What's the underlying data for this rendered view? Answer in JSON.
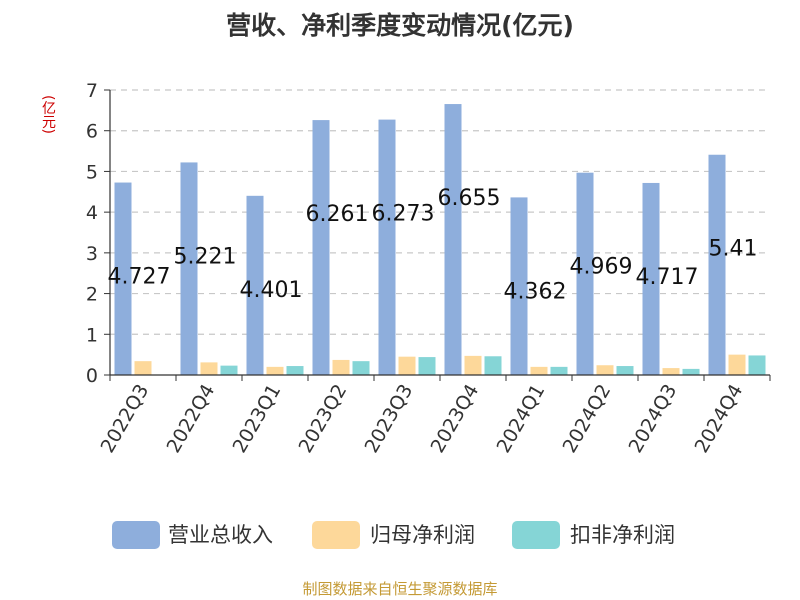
{
  "chart_data": {
    "type": "bar",
    "title": "营收、净利季度变动情况(亿元)",
    "unit_label": "(亿元)",
    "source": "制图数据来自恒生聚源数据库",
    "categories": [
      "2022Q3",
      "2022Q4",
      "2023Q1",
      "2023Q2",
      "2023Q3",
      "2023Q4",
      "2024Q1",
      "2024Q2",
      "2024Q3",
      "2024Q4"
    ],
    "ylim": [
      0,
      7
    ],
    "yticks": [
      "0",
      "1",
      "2",
      "3",
      "4",
      "5",
      "6",
      "7"
    ],
    "grid": true,
    "legend_position": "bottom",
    "series": [
      {
        "name": "营业总收入",
        "color": "#8eaedc",
        "values": [
          4.727,
          5.221,
          4.401,
          6.261,
          6.273,
          6.655,
          4.362,
          4.969,
          4.717,
          5.41
        ],
        "labels": [
          "4.727",
          "5.221",
          "4.401",
          "6.261",
          "6.273",
          "6.655",
          "4.362",
          "4.969",
          "4.717",
          "5.41"
        ]
      },
      {
        "name": "归母净利润",
        "color": "#fdd89a",
        "values": [
          0.34,
          0.31,
          0.2,
          0.37,
          0.45,
          0.47,
          0.2,
          0.24,
          0.17,
          0.5
        ]
      },
      {
        "name": "扣非净利润",
        "color": "#85d5d6",
        "values": [
          null,
          0.23,
          0.22,
          0.34,
          0.44,
          0.46,
          0.2,
          0.22,
          0.15,
          0.48
        ]
      }
    ]
  }
}
